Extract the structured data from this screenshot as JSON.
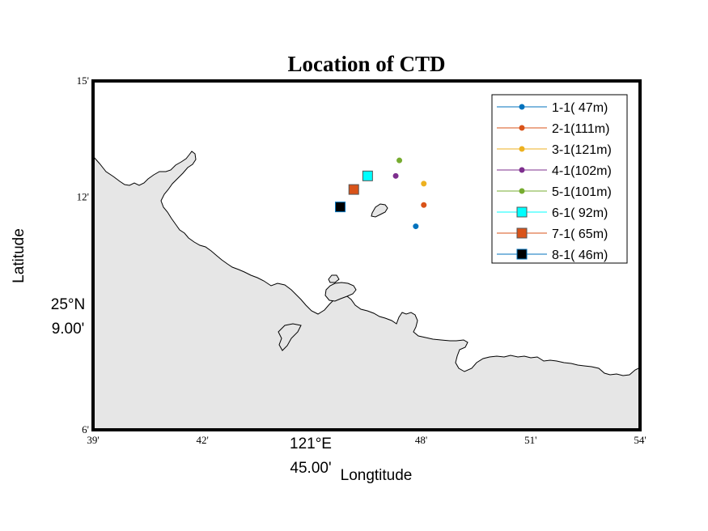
{
  "chart_data": {
    "type": "scatter",
    "title": "Location of CTD",
    "xlabel": "Longtitude",
    "ylabel": "Latitude",
    "x_corner_label": [
      "121°E",
      "45.00'"
    ],
    "y_corner_label": [
      "25°N",
      "9.00'"
    ],
    "x_ticks": [
      "39'",
      "42'",
      "48'",
      "51'",
      "54'"
    ],
    "x_tick_values": [
      39,
      42,
      48,
      51,
      54
    ],
    "y_ticks": [
      "15'",
      "12'",
      "6'"
    ],
    "y_tick_values": [
      15,
      12,
      6
    ],
    "xlim": [
      39,
      54
    ],
    "ylim": [
      6,
      15
    ],
    "x_units": "arc-minutes past 121°E",
    "y_units": "arc-minutes past 25°N",
    "land_color": "#e6e6e6",
    "frame": "thick box",
    "grid": false,
    "legend_position": "top-right",
    "series": [
      {
        "name": "1-1( 47m)",
        "marker": "dot",
        "color": "#0072BD",
        "x": 47.85,
        "y": 11.25
      },
      {
        "name": "2-1(111m)",
        "marker": "dot",
        "color": "#D95319",
        "x": 48.07,
        "y": 11.8
      },
      {
        "name": "3-1(121m)",
        "marker": "dot",
        "color": "#EDB120",
        "x": 48.07,
        "y": 12.35
      },
      {
        "name": "4-1(102m)",
        "marker": "dot",
        "color": "#7E2F8E",
        "x": 47.3,
        "y": 12.55
      },
      {
        "name": "5-1(101m)",
        "marker": "dot",
        "color": "#77AC30",
        "x": 47.4,
        "y": 12.95
      },
      {
        "name": "6-1( 92m)",
        "marker": "square",
        "color": "#00FFFF",
        "x": 46.53,
        "y": 12.55
      },
      {
        "name": "7-1( 65m)",
        "marker": "square",
        "color": "#D95319",
        "x": 46.15,
        "y": 12.2
      },
      {
        "name": "8-1( 46m)",
        "marker": "square",
        "color": "#000000",
        "edge": "#0072BD",
        "x": 45.78,
        "y": 11.75
      }
    ]
  }
}
